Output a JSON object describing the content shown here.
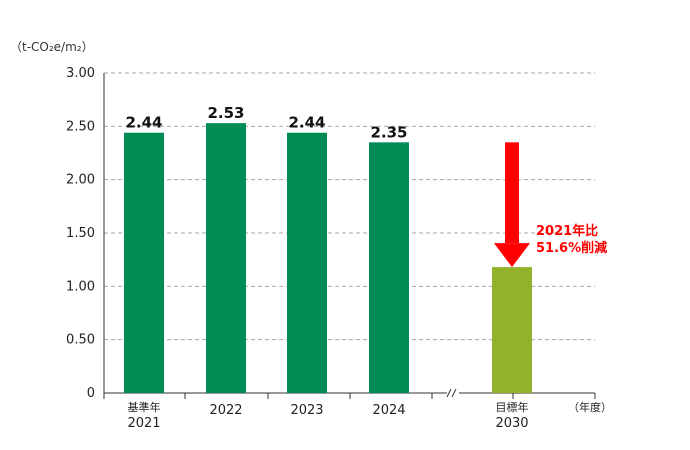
{
  "chart_data": {
    "type": "bar",
    "unit_label": "（t-CO₂e/m₂）",
    "ylim": [
      0,
      3.0
    ],
    "yticks": [
      "3.00",
      "2.50",
      "2.00",
      "1.50",
      "1.00",
      "0.50",
      "0"
    ],
    "grid": true,
    "categories": [
      {
        "top": "基準年",
        "bottom": "2021"
      },
      {
        "top": "",
        "bottom": "2022"
      },
      {
        "top": "",
        "bottom": "2023"
      },
      {
        "top": "",
        "bottom": "2024"
      },
      {
        "top": "目標年",
        "bottom": "2030"
      }
    ],
    "values": [
      2.44,
      2.53,
      2.44,
      2.35,
      1.18
    ],
    "data_labels": [
      "2.44",
      "2.53",
      "2.44",
      "2.35",
      ""
    ],
    "bar_colors": [
      "#008c54",
      "#008c54",
      "#008c54",
      "#008c54",
      "#93b22b"
    ],
    "x_unit": "（年度）",
    "axis_break": "≈",
    "annotation": {
      "line1": "2021年比",
      "line2": "51.6%削減",
      "color": "#ff0000",
      "arrow_from": 2.35,
      "arrow_to": 1.18
    }
  }
}
